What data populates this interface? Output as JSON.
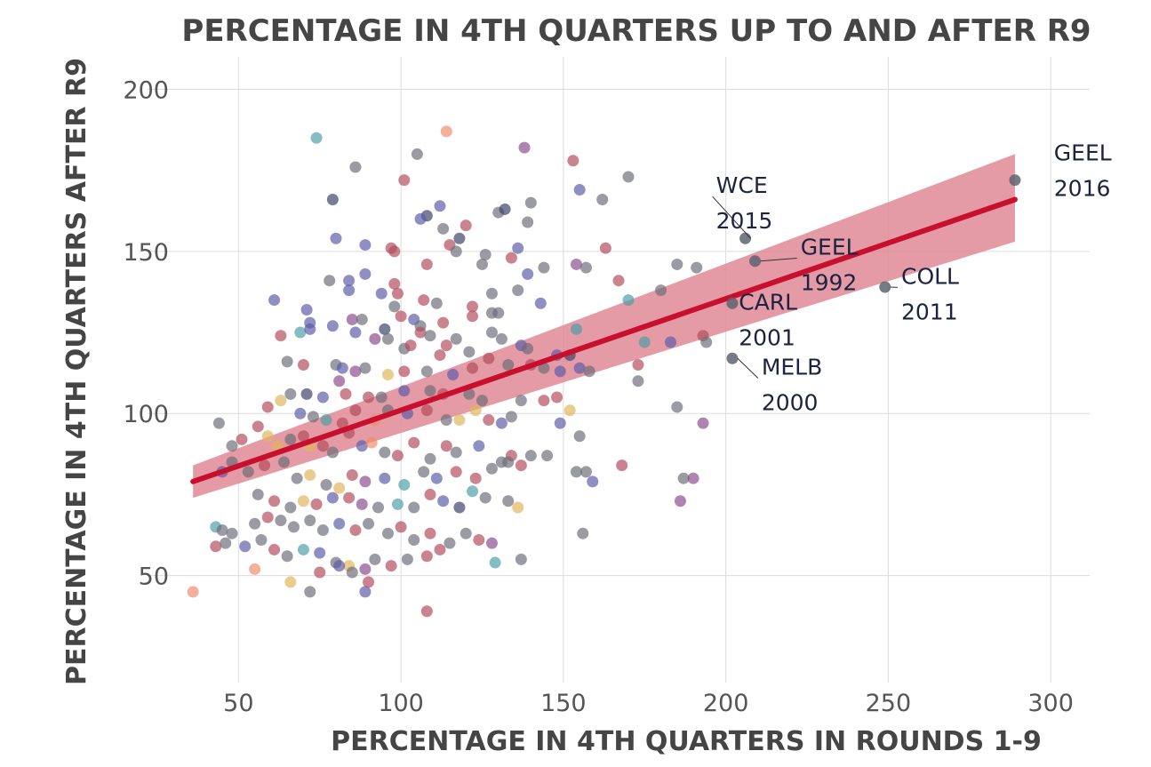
{
  "chart_data": {
    "type": "scatter",
    "title": "PERCENTAGE IN 4TH QUARTERS UP TO AND AFTER R9",
    "xlabel": "PERCENTAGE IN 4TH QUARTERS IN ROUNDS 1-9",
    "ylabel": "PERCENTAGE IN 4TH QUARTERS AFTER R9",
    "xlim": [
      22,
      312
    ],
    "ylim": [
      17,
      210
    ],
    "x_ticks": [
      50,
      100,
      150,
      200,
      250,
      300
    ],
    "y_ticks": [
      50,
      100,
      150,
      200
    ],
    "grid": true,
    "trend": {
      "x_start": 36,
      "y_start": 79,
      "x_end": 289,
      "y_end": 166,
      "band_start": [
        74,
        84
      ],
      "band_end": [
        153,
        180
      ],
      "color": "#c8102e",
      "band_color": "#e08a95"
    },
    "palette": [
      "#6b6b78",
      "#b34a5a",
      "#5a5aa8",
      "#4a9ea6",
      "#e0b45a",
      "#ef8a6a",
      "#8a4a8a",
      "#3b3f66"
    ],
    "annotations": [
      {
        "label": "GEEL",
        "year": "2016",
        "x": 289,
        "y": 172,
        "text_x": 301,
        "text_y": 178,
        "line": false
      },
      {
        "label": "WCE",
        "year": "2015",
        "x": 206,
        "y": 154,
        "text_x": 197,
        "text_y": 168,
        "line": true
      },
      {
        "label": "GEEL",
        "year": "1992",
        "x": 209,
        "y": 147,
        "text_x": 223,
        "text_y": 149,
        "line": true
      },
      {
        "label": "COLL",
        "year": "2011",
        "x": 249,
        "y": 139,
        "text_x": 254,
        "text_y": 140,
        "line": true
      },
      {
        "label": "CARL",
        "year": "2001",
        "x": 202,
        "y": 134,
        "text_x": 204,
        "text_y": 132,
        "line": false
      },
      {
        "label": "MELB",
        "year": "2000",
        "x": 202,
        "y": 117,
        "text_x": 211,
        "text_y": 112,
        "line": true
      }
    ],
    "points": [
      [
        74,
        185,
        3
      ],
      [
        114,
        187,
        5
      ],
      [
        86,
        176,
        0
      ],
      [
        105,
        180,
        0
      ],
      [
        138,
        182,
        6
      ],
      [
        153,
        178,
        1
      ],
      [
        170,
        173,
        0
      ],
      [
        101,
        172,
        1
      ],
      [
        155,
        169,
        2
      ],
      [
        79,
        166,
        7
      ],
      [
        140,
        165,
        0
      ],
      [
        130,
        162,
        0
      ],
      [
        132,
        163,
        7
      ],
      [
        162,
        166,
        0
      ],
      [
        108,
        161,
        7
      ],
      [
        106,
        160,
        2
      ],
      [
        112,
        164,
        2
      ],
      [
        120,
        158,
        1
      ],
      [
        113,
        157,
        0
      ],
      [
        139,
        159,
        0
      ],
      [
        80,
        154,
        2
      ],
      [
        118,
        154,
        7
      ],
      [
        163,
        151,
        1
      ],
      [
        136,
        151,
        2
      ],
      [
        98,
        150,
        1
      ],
      [
        97,
        151,
        1
      ],
      [
        115,
        152,
        1
      ],
      [
        117,
        150,
        0
      ],
      [
        89,
        152,
        2
      ],
      [
        134,
        148,
        1
      ],
      [
        126,
        149,
        0
      ],
      [
        185,
        146,
        0
      ],
      [
        191,
        145,
        0
      ],
      [
        144,
        145,
        0
      ],
      [
        157,
        145,
        0
      ],
      [
        108,
        146,
        1
      ],
      [
        78,
        141,
        0
      ],
      [
        84,
        141,
        2
      ],
      [
        89,
        143,
        2
      ],
      [
        139,
        143,
        2
      ],
      [
        98,
        140,
        1
      ],
      [
        125,
        146,
        0
      ],
      [
        154,
        146,
        6
      ],
      [
        180,
        138,
        0
      ],
      [
        167,
        141,
        1
      ],
      [
        84,
        138,
        2
      ],
      [
        94,
        137,
        2
      ],
      [
        99,
        137,
        1
      ],
      [
        136,
        138,
        0
      ],
      [
        170,
        135,
        3
      ],
      [
        111,
        134,
        0
      ],
      [
        107,
        135,
        1
      ],
      [
        143,
        134,
        2
      ],
      [
        122,
        133,
        1
      ],
      [
        128,
        137,
        0
      ],
      [
        61,
        135,
        2
      ],
      [
        71,
        132,
        2
      ],
      [
        98,
        133,
        0
      ],
      [
        85,
        129,
        6
      ],
      [
        88,
        129,
        0
      ],
      [
        72,
        128,
        2
      ],
      [
        79,
        127,
        2
      ],
      [
        95,
        126,
        7
      ],
      [
        100,
        130,
        1
      ],
      [
        104,
        129,
        2
      ],
      [
        106,
        127,
        0
      ],
      [
        113,
        128,
        1
      ],
      [
        122,
        130,
        1
      ],
      [
        128,
        131,
        0
      ],
      [
        130,
        131,
        0
      ],
      [
        69,
        125,
        3
      ],
      [
        63,
        124,
        1
      ],
      [
        72,
        126,
        2
      ],
      [
        86,
        125,
        2
      ],
      [
        92,
        123,
        6
      ],
      [
        96,
        123,
        0
      ],
      [
        106,
        125,
        1
      ],
      [
        109,
        124,
        0
      ],
      [
        117,
        123,
        0
      ],
      [
        128,
        125,
        0
      ],
      [
        131,
        123,
        0
      ],
      [
        137,
        121,
        2
      ],
      [
        139,
        120,
        0
      ],
      [
        154,
        126,
        3
      ],
      [
        175,
        122,
        3
      ],
      [
        183,
        122,
        2
      ],
      [
        193,
        124,
        1
      ],
      [
        194,
        122,
        0
      ],
      [
        148,
        118,
        2
      ],
      [
        101,
        120,
        0
      ],
      [
        103,
        121,
        1
      ],
      [
        112,
        118,
        1
      ],
      [
        114,
        121,
        1
      ],
      [
        121,
        119,
        0
      ],
      [
        127,
        117,
        1
      ],
      [
        65,
        116,
        0
      ],
      [
        70,
        115,
        1
      ],
      [
        80,
        115,
        0
      ],
      [
        82,
        114,
        2
      ],
      [
        86,
        113,
        6
      ],
      [
        89,
        114,
        0
      ],
      [
        96,
        112,
        4
      ],
      [
        101,
        113,
        1
      ],
      [
        108,
        113,
        0
      ],
      [
        116,
        112,
        2
      ],
      [
        122,
        114,
        1
      ],
      [
        133,
        115,
        0
      ],
      [
        140,
        115,
        1
      ],
      [
        144,
        114,
        0
      ],
      [
        149,
        113,
        2
      ],
      [
        152,
        118,
        7
      ],
      [
        155,
        114,
        2
      ],
      [
        158,
        113,
        0
      ],
      [
        173,
        115,
        1
      ],
      [
        173,
        110,
        0
      ],
      [
        66,
        106,
        0
      ],
      [
        71,
        106,
        7
      ],
      [
        76,
        105,
        2
      ],
      [
        81,
        110,
        6
      ],
      [
        83,
        106,
        1
      ],
      [
        90,
        105,
        1
      ],
      [
        94,
        105,
        0
      ],
      [
        101,
        107,
        2
      ],
      [
        109,
        107,
        0
      ],
      [
        113,
        106,
        1
      ],
      [
        121,
        106,
        0
      ],
      [
        125,
        104,
        0
      ],
      [
        137,
        104,
        0
      ],
      [
        144,
        104,
        1
      ],
      [
        148,
        105,
        1
      ],
      [
        59,
        102,
        1
      ],
      [
        63,
        104,
        4
      ],
      [
        69,
        100,
        2
      ],
      [
        73,
        99,
        0
      ],
      [
        77,
        98,
        3
      ],
      [
        82,
        97,
        1
      ],
      [
        86,
        101,
        1
      ],
      [
        92,
        98,
        5
      ],
      [
        96,
        101,
        0
      ],
      [
        102,
        100,
        2
      ],
      [
        108,
        101,
        1
      ],
      [
        114,
        98,
        0
      ],
      [
        118,
        98,
        4
      ],
      [
        123,
        101,
        4
      ],
      [
        127,
        98,
        1
      ],
      [
        131,
        97,
        2
      ],
      [
        134,
        99,
        0
      ],
      [
        149,
        97,
        2
      ],
      [
        152,
        101,
        4
      ],
      [
        185,
        102,
        0
      ],
      [
        193,
        97,
        6
      ],
      [
        44,
        97,
        0
      ],
      [
        48,
        90,
        0
      ],
      [
        51,
        92,
        1
      ],
      [
        56,
        96,
        1
      ],
      [
        59,
        93,
        4
      ],
      [
        62,
        90,
        4
      ],
      [
        66,
        92,
        0
      ],
      [
        70,
        93,
        1
      ],
      [
        72,
        90,
        4
      ],
      [
        76,
        90,
        1
      ],
      [
        79,
        88,
        0
      ],
      [
        84,
        94,
        1
      ],
      [
        88,
        90,
        2
      ],
      [
        91,
        91,
        5
      ],
      [
        95,
        88,
        0
      ],
      [
        99,
        87,
        1
      ],
      [
        104,
        91,
        1
      ],
      [
        109,
        86,
        0
      ],
      [
        114,
        90,
        1
      ],
      [
        117,
        88,
        0
      ],
      [
        124,
        90,
        2
      ],
      [
        131,
        85,
        0
      ],
      [
        134,
        87,
        1
      ],
      [
        140,
        87,
        0
      ],
      [
        145,
        87,
        0
      ],
      [
        155,
        93,
        0
      ],
      [
        157,
        82,
        0
      ],
      [
        48,
        85,
        0
      ],
      [
        45,
        82,
        2
      ],
      [
        53,
        82,
        0
      ],
      [
        58,
        84,
        1
      ],
      [
        64,
        85,
        0
      ],
      [
        68,
        80,
        0
      ],
      [
        72,
        81,
        4
      ],
      [
        77,
        78,
        0
      ],
      [
        81,
        77,
        4
      ],
      [
        85,
        81,
        1
      ],
      [
        89,
        79,
        6
      ],
      [
        95,
        80,
        2
      ],
      [
        101,
        78,
        3
      ],
      [
        107,
        82,
        0
      ],
      [
        111,
        80,
        2
      ],
      [
        117,
        82,
        1
      ],
      [
        123,
        80,
        1
      ],
      [
        128,
        83,
        0
      ],
      [
        133,
        85,
        0
      ],
      [
        137,
        84,
        1
      ],
      [
        154,
        82,
        0
      ],
      [
        159,
        79,
        2
      ],
      [
        168,
        84,
        1
      ],
      [
        187,
        80,
        0
      ],
      [
        190,
        80,
        6
      ],
      [
        56,
        75,
        0
      ],
      [
        61,
        73,
        1
      ],
      [
        66,
        71,
        0
      ],
      [
        70,
        73,
        4
      ],
      [
        74,
        72,
        1
      ],
      [
        79,
        74,
        2
      ],
      [
        84,
        74,
        1
      ],
      [
        88,
        72,
        6
      ],
      [
        93,
        71,
        0
      ],
      [
        99,
        72,
        3
      ],
      [
        104,
        71,
        0
      ],
      [
        109,
        75,
        1
      ],
      [
        113,
        73,
        2
      ],
      [
        118,
        71,
        7
      ],
      [
        122,
        76,
        3
      ],
      [
        126,
        74,
        0
      ],
      [
        133,
        73,
        0
      ],
      [
        136,
        71,
        4
      ],
      [
        186,
        73,
        6
      ],
      [
        43,
        65,
        3
      ],
      [
        45,
        64,
        0
      ],
      [
        48,
        63,
        0
      ],
      [
        55,
        66,
        0
      ],
      [
        59,
        68,
        1
      ],
      [
        63,
        67,
        0
      ],
      [
        67,
        65,
        0
      ],
      [
        72,
        67,
        0
      ],
      [
        76,
        64,
        0
      ],
      [
        81,
        66,
        2
      ],
      [
        86,
        64,
        1
      ],
      [
        90,
        66,
        0
      ],
      [
        96,
        63,
        0
      ],
      [
        100,
        65,
        1
      ],
      [
        104,
        61,
        0
      ],
      [
        109,
        63,
        1
      ],
      [
        115,
        60,
        0
      ],
      [
        120,
        63,
        0
      ],
      [
        124,
        61,
        1
      ],
      [
        128,
        60,
        6
      ],
      [
        156,
        63,
        0
      ],
      [
        43,
        59,
        1
      ],
      [
        46,
        60,
        0
      ],
      [
        52,
        59,
        2
      ],
      [
        57,
        61,
        0
      ],
      [
        61,
        58,
        1
      ],
      [
        65,
        56,
        0
      ],
      [
        70,
        58,
        3
      ],
      [
        75,
        57,
        2
      ],
      [
        80,
        54,
        0
      ],
      [
        84,
        53,
        4
      ],
      [
        89,
        52,
        6
      ],
      [
        92,
        55,
        0
      ],
      [
        97,
        53,
        1
      ],
      [
        102,
        55,
        0
      ],
      [
        108,
        56,
        1
      ],
      [
        112,
        58,
        1
      ],
      [
        129,
        54,
        3
      ],
      [
        137,
        55,
        0
      ],
      [
        55,
        52,
        5
      ],
      [
        66,
        48,
        4
      ],
      [
        72,
        45,
        0
      ],
      [
        85,
        51,
        0
      ],
      [
        89,
        45,
        2
      ],
      [
        36,
        45,
        5
      ],
      [
        108,
        39,
        1
      ],
      [
        75,
        51,
        1
      ],
      [
        81,
        53,
        2
      ],
      [
        90,
        48,
        1
      ]
    ]
  }
}
